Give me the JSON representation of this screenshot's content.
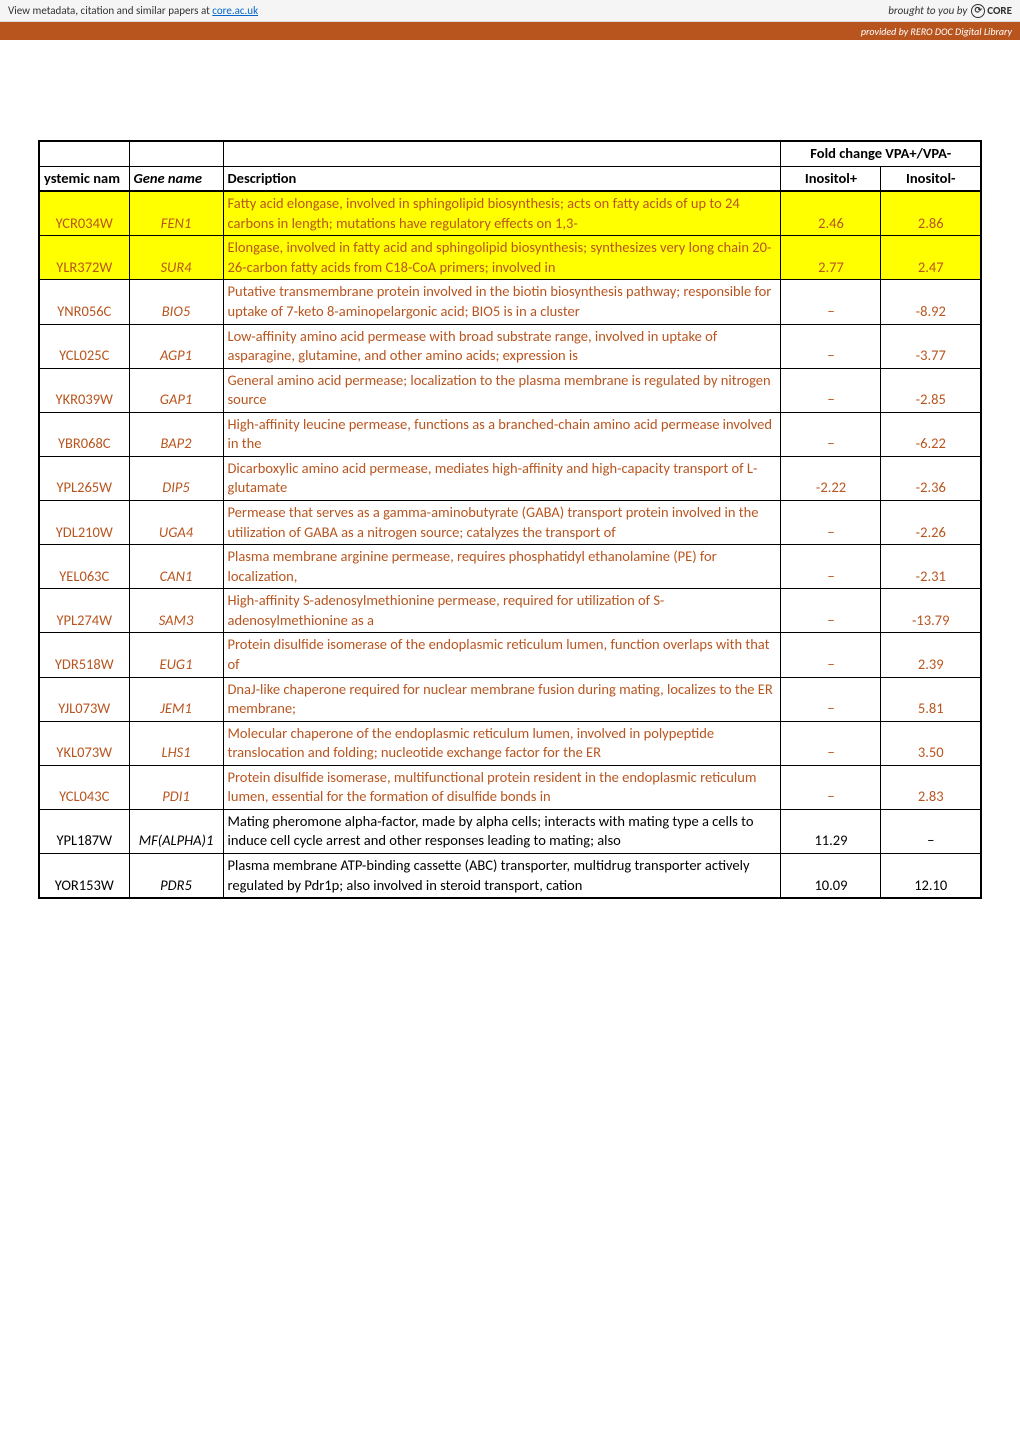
{
  "banner": {
    "left_prefix": "View metadata, citation and similar papers at ",
    "left_link": "core.ac.uk",
    "right_prefix": "brought to you by ",
    "core_label": "CORE"
  },
  "orange_bar": {
    "text": "provided by RERO DOC Digital Library"
  },
  "table": {
    "header": {
      "fold_change": "Fold change VPA+/VPA-",
      "systemic": "ystemic nam",
      "gene": "Gene name",
      "description": "Description",
      "inositol_plus": "Inositol+",
      "inositol_minus": "Inositol-"
    },
    "rows": [
      {
        "highlight": true,
        "systemic": "YCR034W",
        "gene": "FEN1",
        "desc": "Fatty acid elongase, involved in sphingolipid biosynthesis; acts on fatty acids of up to 24 carbons in length; mutations have regulatory effects on 1,3-",
        "plus": "2.46",
        "minus": "2.86"
      },
      {
        "highlight": true,
        "systemic": "YLR372W",
        "gene": "SUR4",
        "desc": "Elongase, involved in fatty acid and sphingolipid biosynthesis; synthesizes very long chain 20-26-carbon fatty acids from C18-CoA primers; involved in",
        "plus": "2.77",
        "minus": "2.47"
      },
      {
        "highlight": false,
        "systemic": "YNR056C",
        "gene": "BIO5",
        "desc": "Putative transmembrane protein involved in the biotin biosynthesis pathway; responsible for uptake of 7-keto 8-aminopelargonic acid; BIO5 is in a cluster",
        "plus": "−",
        "minus": "-8.92"
      },
      {
        "highlight": false,
        "systemic": "YCL025C",
        "gene": "AGP1",
        "desc": "Low-affinity amino acid permease with broad substrate range, involved in uptake of asparagine, glutamine, and other amino acids; expression is",
        "plus": "−",
        "minus": "-3.77"
      },
      {
        "highlight": false,
        "systemic": "YKR039W",
        "gene": "GAP1",
        "desc": "General amino acid permease; localization to the plasma membrane is regulated by nitrogen source",
        "plus": "−",
        "minus": "-2.85"
      },
      {
        "highlight": false,
        "systemic": "YBR068C",
        "gene": "BAP2",
        "desc": "High-affinity leucine permease, functions as a branched-chain amino acid permease involved in the",
        "plus": "−",
        "minus": "-6.22"
      },
      {
        "highlight": false,
        "systemic": "YPL265W",
        "gene": "DIP5",
        "desc": "Dicarboxylic amino acid permease, mediates high-affinity and high-capacity transport of L-glutamate",
        "plus": "-2.22",
        "minus": "-2.36"
      },
      {
        "highlight": false,
        "systemic": "YDL210W",
        "gene": "UGA4",
        "desc": "Permease that serves as a gamma-aminobutyrate (GABA) transport protein involved in the utilization of GABA as a nitrogen source; catalyzes the transport of",
        "plus": "−",
        "minus": "-2.26"
      },
      {
        "highlight": false,
        "systemic": "YEL063C",
        "gene": "CAN1",
        "desc": "Plasma membrane arginine permease, requires phosphatidyl ethanolamine (PE) for localization,",
        "plus": "−",
        "minus": "-2.31"
      },
      {
        "highlight": false,
        "systemic": "YPL274W",
        "gene": "SAM3",
        "desc": "High-affinity S-adenosylmethionine permease, required for utilization of S-adenosylmethionine as a",
        "plus": "−",
        "minus": "-13.79"
      },
      {
        "highlight": false,
        "systemic": "YDR518W",
        "gene": "EUG1",
        "desc": "Protein disulfide isomerase of the endoplasmic reticulum lumen, function overlaps with that of",
        "plus": "−",
        "minus": "2.39"
      },
      {
        "highlight": false,
        "systemic": "YJL073W",
        "gene": "JEM1",
        "desc": "DnaJ-like chaperone required for nuclear membrane fusion during mating, localizes to the ER membrane;",
        "plus": "−",
        "minus": "5.81"
      },
      {
        "highlight": false,
        "systemic": "YKL073W",
        "gene": "LHS1",
        "desc": "Molecular chaperone of the endoplasmic reticulum lumen, involved in polypeptide translocation and folding; nucleotide exchange factor for the ER",
        "plus": "−",
        "minus": "3.50"
      },
      {
        "highlight": false,
        "systemic": "YCL043C",
        "gene": "PDI1",
        "desc": "Protein disulfide isomerase, multifunctional protein resident in the endoplasmic reticulum lumen, essential for the formation of disulfide bonds in",
        "plus": "−",
        "minus": "2.83"
      },
      {
        "highlight": false,
        "plain": true,
        "systemic": "YPL187W",
        "gene": "MF(ALPHA)1",
        "desc": "Mating pheromone alpha-factor, made by alpha cells; interacts with mating type a cells to induce cell cycle arrest and other responses leading to mating; also",
        "plus": "11.29",
        "minus": "−"
      },
      {
        "highlight": false,
        "plain": true,
        "systemic": "YOR153W",
        "gene": "PDR5",
        "desc": "Plasma membrane ATP-binding cassette (ABC) transporter, multidrug transporter actively regulated by Pdr1p; also involved in steroid transport, cation",
        "plus": "10.09",
        "minus": "12.10"
      }
    ]
  },
  "colors": {
    "orange": "#b8551f",
    "highlight": "#ffff00"
  }
}
